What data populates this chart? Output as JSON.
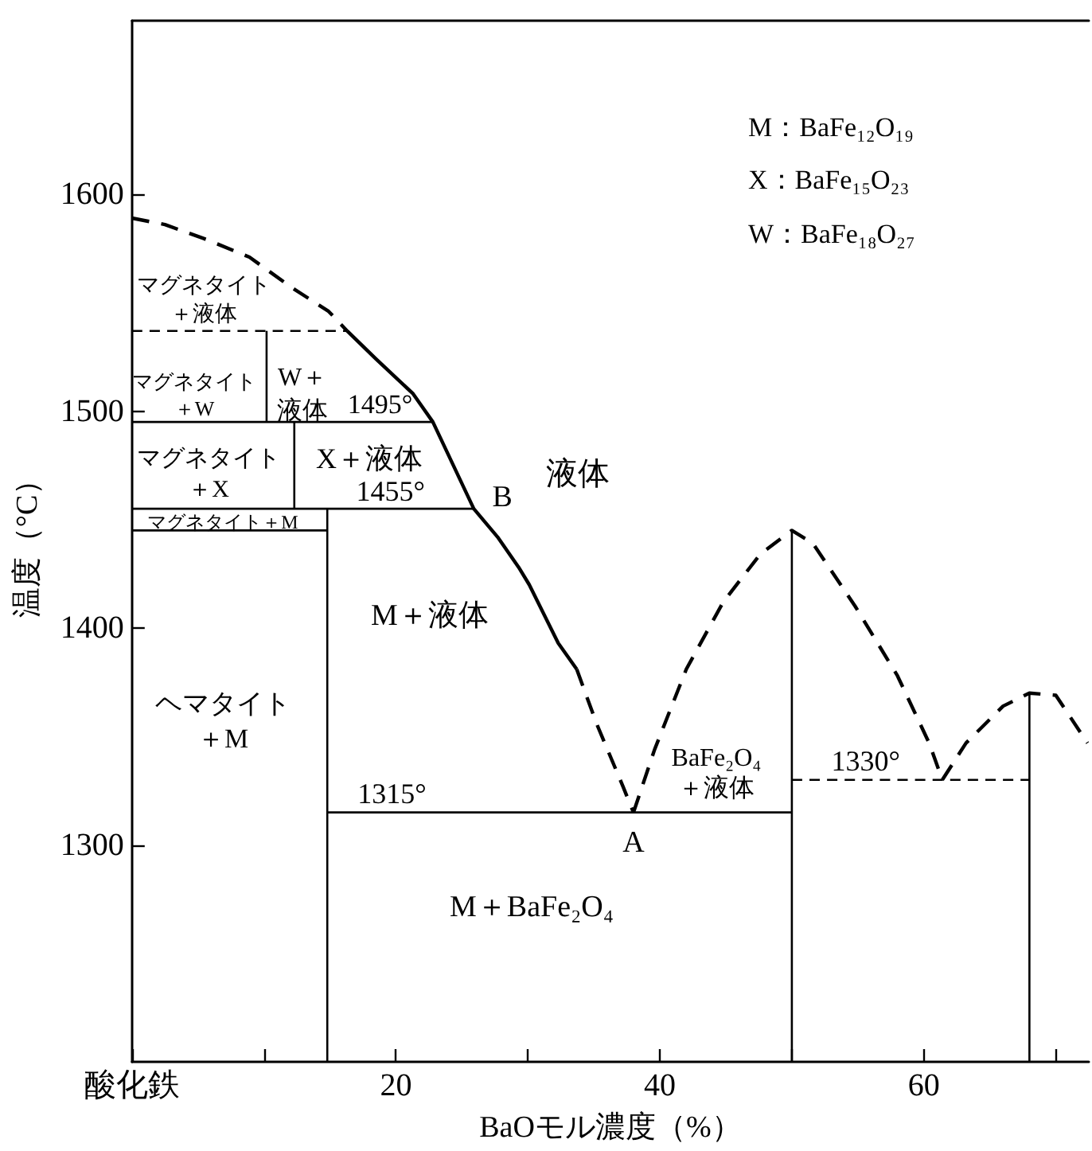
{
  "chart_data": {
    "type": "line",
    "xlabel": "BaOモル濃度（%）",
    "ylabel": "温度（°C）",
    "xlim": [
      0,
      72.5
    ],
    "ylim": [
      1200,
      1680
    ],
    "xticks": [
      {
        "value": 0,
        "label": "酸化鉄"
      },
      {
        "value": 10,
        "label": null
      },
      20,
      {
        "value": 30,
        "label": null
      },
      40,
      {
        "value": 50,
        "label": null
      },
      60,
      {
        "value": 70,
        "label": null
      }
    ],
    "yticks": [
      1300,
      1400,
      1500,
      1600
    ],
    "line_style": "solid",
    "series": [
      {
        "color": "#000000",
        "line_style": "dashed",
        "x": [
          0,
          2.5,
          5.7,
          8.9,
          12.1,
          14.9,
          16.3
        ],
        "values": [
          1589,
          1586,
          1579,
          1571,
          1557,
          1546,
          1537
        ]
      },
      {
        "color": "#000000",
        "x": [
          16.3,
          18.5,
          21.3,
          22.8,
          25.9,
          27.7,
          29.3,
          30.1,
          32.3,
          33.7
        ],
        "values": [
          1537,
          1524,
          1508,
          1495,
          1455,
          1442,
          1428,
          1420,
          1393,
          1381
        ]
      },
      {
        "color": "#000000",
        "line_style": "dashed",
        "x": [
          33.7,
          35.2,
          37.2,
          38
        ],
        "values": [
          1381,
          1356,
          1327,
          1315
        ]
      },
      {
        "color": "#000000",
        "line_style": "dashed",
        "x": [
          38,
          39.6,
          42,
          44.8,
          47.6,
          50,
          51.6,
          54.8,
          58,
          60.4,
          61.4
        ],
        "values": [
          1315,
          1344,
          1381,
          1412,
          1434,
          1445,
          1439,
          1410,
          1378,
          1347,
          1330
        ]
      },
      {
        "color": "#000000",
        "line_style": "dashed",
        "x": [
          61.4,
          63.2,
          66,
          68,
          70,
          72.4
        ],
        "values": [
          1330,
          1347,
          1364,
          1370,
          1369,
          1347
        ]
      },
      {
        "color": "#000000",
        "line_style": "dashed",
        "x": [
          0,
          16.3
        ],
        "values": [
          1537,
          1537
        ]
      },
      {
        "color": "#000000",
        "x": [
          0,
          22.8
        ],
        "values": [
          1495,
          1495
        ]
      },
      {
        "color": "#000000",
        "x": [
          0,
          25.9
        ],
        "values": [
          1455,
          1455
        ]
      },
      {
        "color": "#000000",
        "x": [
          0,
          14.8
        ],
        "values": [
          1445,
          1445
        ]
      },
      {
        "color": "#000000",
        "x": [
          14.8,
          50
        ],
        "values": [
          1315,
          1315
        ]
      },
      {
        "color": "#000000",
        "line_style": "dashed",
        "x": [
          50,
          68
        ],
        "values": [
          1330,
          1330
        ]
      },
      {
        "color": "#000000",
        "x": [
          10.2,
          10.2
        ],
        "values": [
          1537,
          1495
        ]
      },
      {
        "color": "#000000",
        "x": [
          12.3,
          12.3
        ],
        "values": [
          1495,
          1455
        ]
      },
      {
        "color": "#000000",
        "x": [
          14.8,
          14.8
        ],
        "values": [
          1455,
          1200
        ]
      },
      {
        "color": "#000000",
        "x": [
          50,
          50
        ],
        "values": [
          1445,
          1200
        ]
      },
      {
        "color": "#000000",
        "x": [
          68,
          68
        ],
        "values": [
          1370,
          1200
        ]
      }
    ],
    "annotations": [
      "M：BaFe₁₂O₁₉",
      "X：BaFe₁₅O₂₃",
      "W：BaFe₁₈O₂₇",
      "マグネタイト＋液体",
      "マグネタイト＋W",
      "W＋液体",
      {
        "text": "1495°",
        "x": 18.8,
        "y": 1495
      },
      "マグネタイト＋X",
      "X＋液体",
      {
        "text": "1455°",
        "x": 19.6,
        "y": 1455
      },
      "マグネタイト＋M",
      {
        "text": "B",
        "x": 25.9,
        "y": 1455
      },
      "液体",
      "M＋液体",
      "ヘマタイト＋M",
      {
        "text": "1315°",
        "x": 19.7,
        "y": 1315
      },
      {
        "text": "A",
        "x": 38,
        "y": 1315
      },
      "BaFe₂O₄＋液体",
      {
        "text": "1330°",
        "x": 55.6,
        "y": 1330
      },
      "M＋BaFe₂O₄"
    ]
  }
}
